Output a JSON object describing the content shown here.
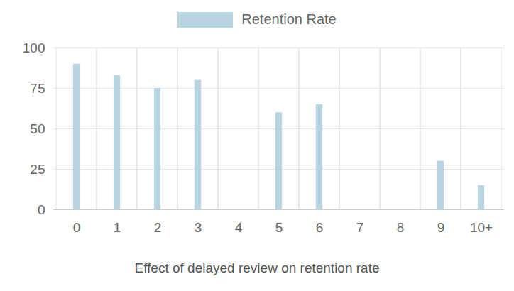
{
  "chart_data": {
    "type": "bar",
    "title": "Effect of delayed review on retention rate",
    "categories": [
      "0",
      "1",
      "2",
      "3",
      "4",
      "5",
      "6",
      "7",
      "8",
      "9",
      "10+"
    ],
    "series": [
      {
        "name": "Retention Rate",
        "color": "#b8d4e0",
        "values": [
          90,
          83,
          75,
          80,
          null,
          60,
          65,
          null,
          null,
          30,
          15
        ]
      }
    ],
    "ylim": [
      0,
      100
    ],
    "yticks": [
      0,
      25,
      50,
      75,
      100
    ],
    "grid": true,
    "legend": "top"
  }
}
